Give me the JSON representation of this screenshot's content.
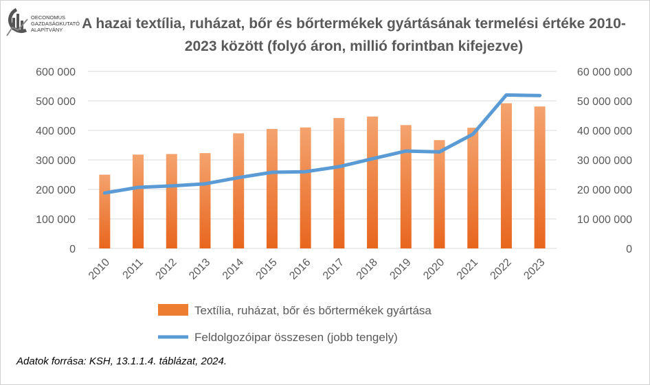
{
  "logo": {
    "lines": [
      "OECONOMUS",
      "GAZDASÁGKUTATÓ",
      "ALAPÍTVÁNY"
    ],
    "icon": "oeconomus-logo-icon"
  },
  "chart_data": {
    "type": "bar",
    "title": "A hazai textília, ruházat, bőr és bőrtermékek gyártásának termelési értéke 2010-2023 között (folyó áron, millió forintban kifejezve)",
    "categories": [
      "2010",
      "2011",
      "2012",
      "2013",
      "2014",
      "2015",
      "2016",
      "2017",
      "2018",
      "2019",
      "2020",
      "2021",
      "2022",
      "2023"
    ],
    "series": [
      {
        "name": "Textília, ruházat, bőr és bőrtermékek gyártása",
        "type": "bar",
        "axis": "left",
        "color": "#ed7d31",
        "values": [
          250000,
          318000,
          320000,
          323000,
          390000,
          405000,
          410000,
          442000,
          447000,
          418000,
          367000,
          409000,
          492000,
          481000
        ]
      },
      {
        "name": "Feldolgozóipar összesen (jobb tengely)",
        "type": "line",
        "axis": "right",
        "color": "#5b9bd5",
        "values": [
          18800000,
          20700000,
          21200000,
          21900000,
          24000000,
          25800000,
          26000000,
          27700000,
          30400000,
          33000000,
          32700000,
          38700000,
          52000000,
          51800000
        ]
      }
    ],
    "y_left": {
      "ylim": [
        0,
        600000
      ],
      "ticks": [
        "0",
        "100 000",
        "200 000",
        "300 000",
        "400 000",
        "500 000",
        "600 000"
      ]
    },
    "y_right": {
      "ylim": [
        0,
        60000000
      ],
      "ticks": [
        "0",
        "10 000 000",
        "20 000 000",
        "30 000 000",
        "40 000 000",
        "50 000 000",
        "60 000 000"
      ]
    },
    "grid": true,
    "legend_position": "bottom"
  },
  "source": "Adatok forrása: KSH, 13.1.1.4. táblázat, 2024."
}
